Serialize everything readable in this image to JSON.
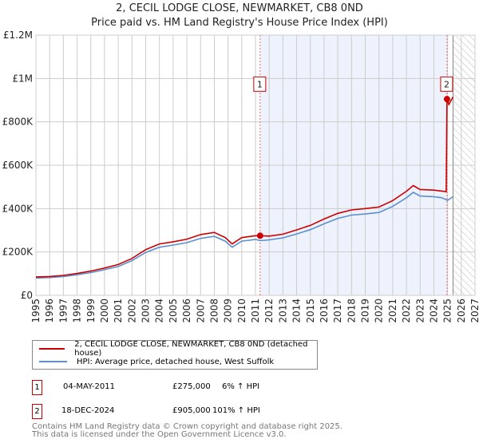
{
  "chart_data": {
    "type": "line",
    "title": "2, CECIL LODGE CLOSE, NEWMARKET, CB8 0ND",
    "subtitle": "Price paid vs. HM Land Registry's House Price Index (HPI)",
    "xlim": [
      1995,
      2027
    ],
    "ylim": [
      0,
      1200000
    ],
    "x_ticks": [
      "1995",
      "1996",
      "1997",
      "1998",
      "1999",
      "2000",
      "2001",
      "2002",
      "2003",
      "2004",
      "2005",
      "2006",
      "2007",
      "2008",
      "2009",
      "2010",
      "2011",
      "2012",
      "2013",
      "2014",
      "2015",
      "2016",
      "2017",
      "2018",
      "2019",
      "2020",
      "2021",
      "2022",
      "2023",
      "2024",
      "2025",
      "2026",
      "2027"
    ],
    "y_ticks": [
      {
        "v": 0,
        "label": "£0"
      },
      {
        "v": 200000,
        "label": "£200K"
      },
      {
        "v": 400000,
        "label": "£400K"
      },
      {
        "v": 600000,
        "label": "£600K"
      },
      {
        "v": 800000,
        "label": "£800K"
      },
      {
        "v": 1000000,
        "label": "£1M"
      },
      {
        "v": 1200000,
        "label": "£1.2M"
      }
    ],
    "grid": true,
    "hatched_from": 2025.4,
    "series": [
      {
        "name": "HPI: Average price, detached house, West Suffolk",
        "color": "#5b8fd0",
        "x": [
          1995,
          1996,
          1997,
          1998,
          1999,
          2000,
          2001,
          2002,
          2003,
          2004,
          2005,
          2006,
          2007,
          2008,
          2008.8,
          2009.3,
          2010,
          2011,
          2011.35,
          2012,
          2013,
          2014,
          2015,
          2016,
          2017,
          2018,
          2019,
          2020,
          2021,
          2022,
          2022.5,
          2023,
          2024,
          2024.6,
          2025,
          2025.4
        ],
        "y": [
          80000,
          82000,
          87000,
          95000,
          105000,
          118000,
          133000,
          160000,
          198000,
          222000,
          232000,
          243000,
          263000,
          272000,
          250000,
          222000,
          250000,
          258000,
          252000,
          256000,
          265000,
          283000,
          303000,
          330000,
          355000,
          370000,
          375000,
          382000,
          410000,
          450000,
          475000,
          458000,
          455000,
          450000,
          438000,
          455000
        ]
      },
      {
        "name": "2, CECIL LODGE CLOSE, NEWMARKET, CB8 0ND (detached house)",
        "color": "#cc0000",
        "x": [
          1995,
          1996,
          1997,
          1998,
          1999,
          2000,
          2001,
          2002,
          2003,
          2004,
          2005,
          2006,
          2007,
          2008,
          2008.8,
          2009.3,
          2010,
          2011,
          2011.35,
          2012,
          2013,
          2014,
          2015,
          2016,
          2017,
          2018,
          2019,
          2020,
          2021,
          2022,
          2022.5,
          2023,
          2024,
          2024.9,
          2024.96,
          2025.1,
          2025.4
        ],
        "y": [
          85000,
          87000,
          92000,
          101000,
          112000,
          126000,
          142000,
          170000,
          211000,
          237000,
          247000,
          259000,
          280000,
          290000,
          266000,
          237000,
          266000,
          275000,
          275000,
          273000,
          282000,
          302000,
          323000,
          352000,
          378000,
          394000,
          400000,
          407000,
          437000,
          480000,
          506000,
          488000,
          485000,
          478000,
          905000,
          880000,
          915000
        ]
      }
    ],
    "sales": [
      {
        "num": "1",
        "x": 2011.34,
        "price": 275000,
        "date": "04-MAY-2011",
        "price_label": "£275,000",
        "hpi": "6% ↑ HPI"
      },
      {
        "num": "2",
        "x": 2024.96,
        "price": 905000,
        "date": "18-DEC-2024",
        "price_label": "£905,000",
        "hpi": "101% ↑ HPI"
      }
    ]
  },
  "legend": {
    "property": "2, CECIL LODGE CLOSE, NEWMARKET, CB8 0ND (detached house)",
    "hpi": "HPI: Average price, detached house, West Suffolk"
  },
  "footer": {
    "line1": "Contains HM Land Registry data © Crown copyright and database right 2025.",
    "line2": "This data is licensed under the Open Government Licence v3.0."
  }
}
